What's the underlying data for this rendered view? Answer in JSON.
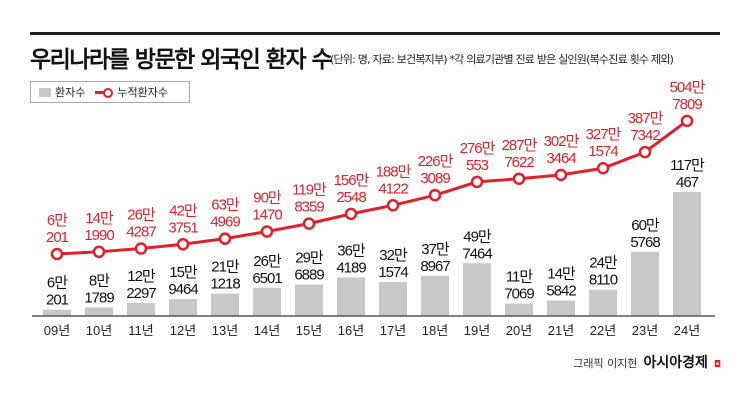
{
  "chart_data": {
    "type": "bar+line",
    "title": "우리나라를 방문한 외국인 환자 수",
    "subtitle": "(단위: 명, 자료: 보건복지부)  *각 의료기관별 진료 받은 실인원(복수진료 횟수 제외)",
    "categories": [
      "09년",
      "10년",
      "11년",
      "12년",
      "13년",
      "14년",
      "15년",
      "16년",
      "17년",
      "18년",
      "19년",
      "20년",
      "21년",
      "22년",
      "23년",
      "24년"
    ],
    "series": [
      {
        "name": "환자수",
        "type": "bar",
        "color": "#c8c8c8",
        "values": [
          60201,
          81789,
          122297,
          159464,
          211218,
          266501,
          296889,
          364189,
          321574,
          378967,
          497464,
          117069,
          145842,
          248110,
          605768,
          1170467
        ],
        "labels": [
          [
            "6만",
            "201"
          ],
          [
            "8만",
            "1789"
          ],
          [
            "12만",
            "2297"
          ],
          [
            "15만",
            "9464"
          ],
          [
            "21만",
            "1218"
          ],
          [
            "26만",
            "6501"
          ],
          [
            "29만",
            "6889"
          ],
          [
            "36만",
            "4189"
          ],
          [
            "32만",
            "1574"
          ],
          [
            "37만",
            "8967"
          ],
          [
            "49만",
            "7464"
          ],
          [
            "11만",
            "7069"
          ],
          [
            "14만",
            "5842"
          ],
          [
            "24만",
            "8110"
          ],
          [
            "60만",
            "5768"
          ],
          [
            "117만",
            "467"
          ]
        ]
      },
      {
        "name": "누적환자수",
        "type": "line",
        "color": "#e0202a",
        "values": [
          60201,
          141990,
          264287,
          423751,
          634969,
          901470,
          1198359,
          1562548,
          1884122,
          2263089,
          2760553,
          2877622,
          3023464,
          3271574,
          3877342,
          5047809
        ],
        "labels": [
          [
            "6만",
            "201"
          ],
          [
            "14만",
            "1990"
          ],
          [
            "26만",
            "4287"
          ],
          [
            "42만",
            "3751"
          ],
          [
            "63만",
            "4969"
          ],
          [
            "90만",
            "1470"
          ],
          [
            "119만",
            "8359"
          ],
          [
            "156만",
            "2548"
          ],
          [
            "188만",
            "4122"
          ],
          [
            "226만",
            "3089"
          ],
          [
            "276만",
            "553"
          ],
          [
            "287만",
            "7622"
          ],
          [
            "302만",
            "3464"
          ],
          [
            "327만",
            "1574"
          ],
          [
            "387만",
            "7342"
          ],
          [
            "504만",
            "7809"
          ]
        ]
      }
    ],
    "legend": {
      "items": [
        "환자수",
        "누적환자수"
      ],
      "placement": "top-left"
    },
    "grid": false
  },
  "footer": {
    "credit": "그래픽 이지현",
    "brand": "아시아경제"
  }
}
